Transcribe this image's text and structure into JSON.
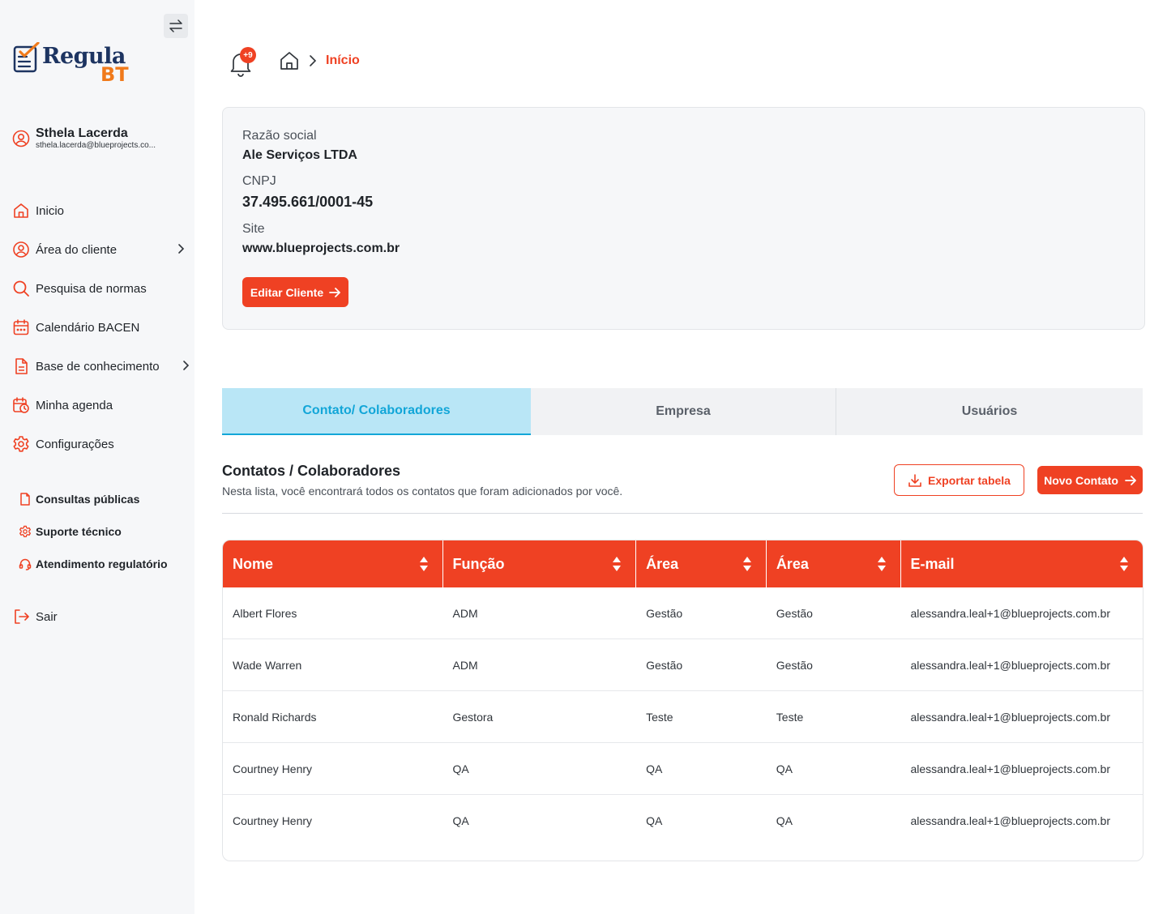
{
  "brand": {
    "name_main": "Regula",
    "name_suffix": "BT"
  },
  "user": {
    "name": "Sthela Lacerda",
    "email": "sthela.lacerda@blueprojects.co..."
  },
  "nav": [
    {
      "label": "Inicio",
      "icon": "home-icon"
    },
    {
      "label": "Área do cliente",
      "icon": "user-circle-icon",
      "has_submenu": true
    },
    {
      "label": "Pesquisa de normas",
      "icon": "search-icon"
    },
    {
      "label": "Calendário BACEN",
      "icon": "calendar-icon"
    },
    {
      "label": "Base de conhecimento",
      "icon": "document-icon",
      "has_submenu": true
    },
    {
      "label": "Minha agenda",
      "icon": "calendar-clock-icon"
    },
    {
      "label": "Configurações",
      "icon": "gear-icon"
    }
  ],
  "links": [
    {
      "label": "Consultas públicas",
      "icon": "file-icon"
    },
    {
      "label": "Suporte técnico",
      "icon": "gear-icon"
    },
    {
      "label": "Atendimento regulatório",
      "icon": "headset-icon"
    }
  ],
  "logout": {
    "label": "Sair"
  },
  "notifications": {
    "badge": "+9"
  },
  "breadcrumb": {
    "current": "Início"
  },
  "client": {
    "razao_label": "Razão social",
    "razao_value": "Ale Serviços LTDA",
    "cnpj_label": "CNPJ",
    "cnpj_value": "37.495.661/0001-45",
    "site_label": "Site",
    "site_value": "www.blueprojects.com.br",
    "edit_label": "Editar Cliente"
  },
  "tabs": [
    {
      "label": "Contato/ Colaboradores",
      "active": true
    },
    {
      "label": "Empresa",
      "active": false
    },
    {
      "label": "Usuários",
      "active": false
    }
  ],
  "section": {
    "title": "Contatos / Colaboradores",
    "subtitle": "Nesta lista, você encontrará todos os contatos que foram adicionados por você.",
    "export_label": "Exportar tabela",
    "new_label": "Novo Contato"
  },
  "table": {
    "columns": [
      "Nome",
      "Função",
      "Área",
      "Área",
      "E-mail"
    ],
    "rows": [
      [
        "Albert Flores",
        "ADM",
        "Gestão",
        "Gestão",
        "alessandra.leal+1@blueprojects.com.br"
      ],
      [
        "Wade Warren",
        "ADM",
        "Gestão",
        "Gestão",
        "alessandra.leal+1@blueprojects.com.br"
      ],
      [
        "Ronald Richards",
        "Gestora",
        "Teste",
        "Teste",
        "alessandra.leal+1@blueprojects.com.br"
      ],
      [
        "Courtney Henry",
        "QA",
        "QA",
        "QA",
        "alessandra.leal+1@blueprojects.com.br"
      ],
      [
        "Courtney Henry",
        "QA",
        "QA",
        "QA",
        "alessandra.leal+1@blueprojects.com.br"
      ]
    ]
  },
  "colors": {
    "accent": "#ef4123",
    "tab_active_bg": "#b9e6f6",
    "tab_active_text": "#12a6d8",
    "brand_navy": "#1d3461",
    "brand_orange": "#f07a1b"
  }
}
